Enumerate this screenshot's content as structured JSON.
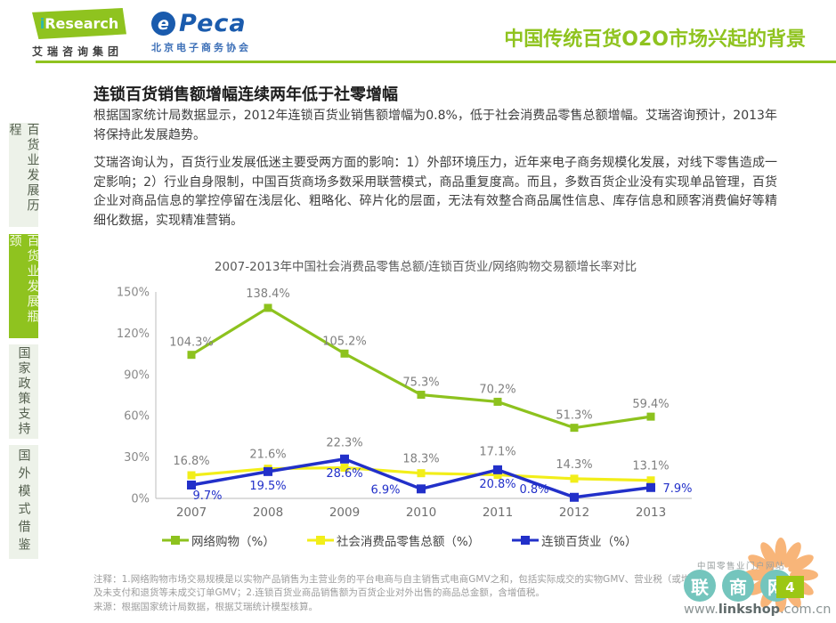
{
  "colors": {
    "brand_green": "#8FC31F",
    "peca_blue": "#1A5BAD",
    "series_green": "#8DC21E",
    "series_yellow": "#F2EE19",
    "series_blue": "#2230C9",
    "label_gray": "#7f7f7f",
    "linkshop_teal": "#74C5BD",
    "sun_orange": "#F8AE6B"
  },
  "header": {
    "iresearch": {
      "i": "i",
      "rest": "Research",
      "sub": "艾瑞咨询集团"
    },
    "peca": {
      "e": "e",
      "rest": "Peca",
      "sub": "北京电子商务协会"
    },
    "title": "中国传统百货O2O市场兴起的背景"
  },
  "sidebar": {
    "items": [
      {
        "label": "百货业发展历程",
        "active": false
      },
      {
        "label": "百货业发展瓶颈",
        "active": true
      },
      {
        "label": "国家政策支持",
        "active": false
      },
      {
        "label": "国外模式借鉴",
        "active": false
      }
    ]
  },
  "main": {
    "heading": "连锁百货销售额增幅连续两年低于社零增幅",
    "para1": "根据国家统计局数据显示，2012年连锁百货业销售额增幅为0.8%，低于社会消费品零售总额增幅。艾瑞咨询预计，2013年将保持此发展趋势。",
    "para2": "艾瑞咨询认为，百货行业发展低迷主要受两方面的影响：1）外部环境压力，近年来电子商务规模化发展，对线下零售造成一定影响；2）行业自身限制，中国百货商场多数采用联营模式，商品重复度高。而且，多数百货企业没有实现单品管理，百货企业对商品信息的掌控停留在浅层化、粗略化、碎片化的层面，无法有效整合商品属性信息、库存信息和顾客消费偏好等精细化数据，实现精准营销。"
  },
  "chart_data": {
    "type": "line",
    "title": "2007-2013年中国社会消费品零售总额/连锁百货业/网络购物交易额增长率对比",
    "categories": [
      "2007",
      "2008",
      "2009",
      "2010",
      "2011",
      "2012",
      "2013"
    ],
    "series": [
      {
        "name": "网络购物（%）",
        "color": "#8DC21E",
        "values": [
          104.3,
          138.4,
          105.2,
          75.3,
          70.2,
          51.3,
          59.4
        ]
      },
      {
        "name": "社会消费品零售总额（%）",
        "color": "#F2EE19",
        "values": [
          16.8,
          21.6,
          22.3,
          18.3,
          17.1,
          14.3,
          13.1
        ]
      },
      {
        "name": "连锁百货业（%）",
        "color": "#2230C9",
        "values": [
          9.7,
          19.5,
          28.6,
          6.9,
          20.8,
          0.8,
          7.9
        ]
      }
    ],
    "xlabel": "",
    "ylabel": "",
    "ylim": [
      0,
      150
    ],
    "yticks": [
      "0%",
      "30%",
      "60%",
      "90%",
      "120%",
      "150%"
    ],
    "grid": false,
    "legend_position": "bottom"
  },
  "footer": {
    "notes": "注释：1.网络购物市场交易规模是以实物产品销售为主营业务的平台电商与自主销售式电商GMV之和，包括实际成交的实物GMV、营业税（或增值税）及未支付和退货等未成交订单GMV；2.连锁百货业商品销售额为百货企业对外出售的商品总金额，含增值税。",
    "source": "来源：根据国家统计局数据，根据艾瑞统计模型核算。"
  },
  "linkshop": {
    "watermark": "中国零售业门户网站",
    "chars": [
      "联",
      "商",
      "网"
    ],
    "url_prefix": "www.",
    "url_bold": "linkshop",
    "url_suffix": ".com.cn",
    "page_number": "4"
  }
}
